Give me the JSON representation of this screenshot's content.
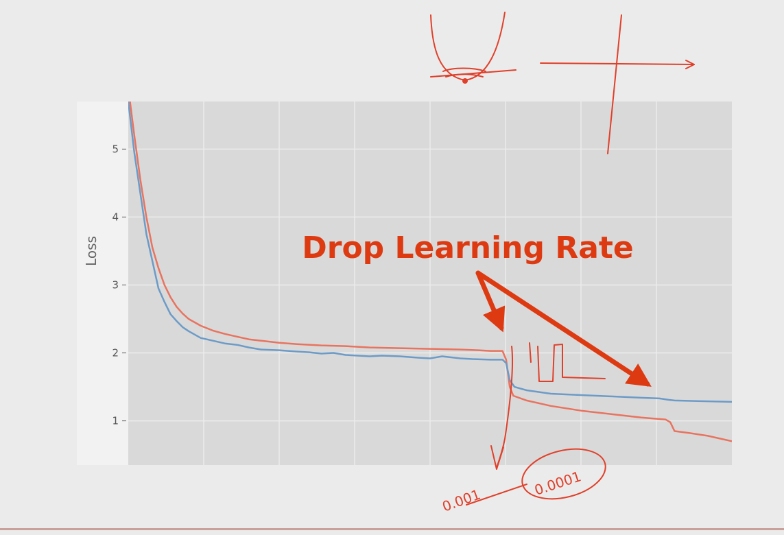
{
  "chart_data": {
    "type": "line",
    "title": "",
    "xlabel": "",
    "ylabel": "Loss",
    "xlim": [
      0,
      100
    ],
    "ylim": [
      0.35,
      5.7
    ],
    "yticks": [
      1,
      2,
      3,
      4,
      5
    ],
    "grid": true,
    "series": [
      {
        "color": "#e8735f",
        "points": [
          [
            0,
            5.9
          ],
          [
            1,
            5.2
          ],
          [
            2,
            4.55
          ],
          [
            3,
            4.0
          ],
          [
            4,
            3.55
          ],
          [
            5,
            3.25
          ],
          [
            6,
            3.0
          ],
          [
            7,
            2.82
          ],
          [
            8,
            2.68
          ],
          [
            9,
            2.58
          ],
          [
            10,
            2.5
          ],
          [
            12,
            2.4
          ],
          [
            14,
            2.33
          ],
          [
            16,
            2.28
          ],
          [
            18,
            2.24
          ],
          [
            20,
            2.2
          ],
          [
            22,
            2.18
          ],
          [
            25,
            2.15
          ],
          [
            28,
            2.13
          ],
          [
            32,
            2.11
          ],
          [
            36,
            2.1
          ],
          [
            40,
            2.08
          ],
          [
            45,
            2.07
          ],
          [
            50,
            2.06
          ],
          [
            55,
            2.05
          ],
          [
            58,
            2.04
          ],
          [
            60,
            2.03
          ],
          [
            62,
            2.03
          ],
          [
            62.6,
            1.9
          ],
          [
            63.2,
            1.5
          ],
          [
            63.8,
            1.37
          ],
          [
            66,
            1.3
          ],
          [
            70,
            1.22
          ],
          [
            75,
            1.15
          ],
          [
            80,
            1.1
          ],
          [
            85,
            1.05
          ],
          [
            89,
            1.02
          ],
          [
            89.8,
            0.98
          ],
          [
            90.5,
            0.85
          ],
          [
            93,
            0.82
          ],
          [
            96,
            0.78
          ],
          [
            100,
            0.7
          ]
        ]
      },
      {
        "color": "#6c9bc7",
        "points": [
          [
            0,
            5.7
          ],
          [
            1,
            4.95
          ],
          [
            2,
            4.35
          ],
          [
            3,
            3.75
          ],
          [
            4,
            3.35
          ],
          [
            5,
            2.95
          ],
          [
            6,
            2.75
          ],
          [
            7,
            2.57
          ],
          [
            8,
            2.47
          ],
          [
            9,
            2.38
          ],
          [
            10,
            2.32
          ],
          [
            12,
            2.22
          ],
          [
            14,
            2.18
          ],
          [
            16,
            2.14
          ],
          [
            18,
            2.12
          ],
          [
            20,
            2.08
          ],
          [
            22,
            2.05
          ],
          [
            25,
            2.04
          ],
          [
            28,
            2.02
          ],
          [
            30,
            2.01
          ],
          [
            32,
            1.99
          ],
          [
            34,
            2.0
          ],
          [
            36,
            1.97
          ],
          [
            38,
            1.96
          ],
          [
            40,
            1.95
          ],
          [
            42,
            1.96
          ],
          [
            45,
            1.95
          ],
          [
            48,
            1.93
          ],
          [
            50,
            1.92
          ],
          [
            52,
            1.95
          ],
          [
            55,
            1.92
          ],
          [
            57,
            1.91
          ],
          [
            60,
            1.9
          ],
          [
            62,
            1.9
          ],
          [
            62.6,
            1.85
          ],
          [
            63.2,
            1.6
          ],
          [
            64,
            1.5
          ],
          [
            66,
            1.45
          ],
          [
            70,
            1.4
          ],
          [
            75,
            1.38
          ],
          [
            80,
            1.36
          ],
          [
            85,
            1.34
          ],
          [
            88,
            1.33
          ],
          [
            89.5,
            1.31
          ],
          [
            90.5,
            1.3
          ],
          [
            95,
            1.29
          ],
          [
            100,
            1.28
          ]
        ]
      }
    ],
    "annotations": {
      "callout_text": "Drop Learning Rate",
      "handwritten_left": "0.001",
      "handwritten_right": "0.0001"
    }
  },
  "colors": {
    "plot_background": "#d9d9d9",
    "gridline": "#ececec",
    "annotation_red": "#dd3a12",
    "ink_red": "#e0402a"
  }
}
